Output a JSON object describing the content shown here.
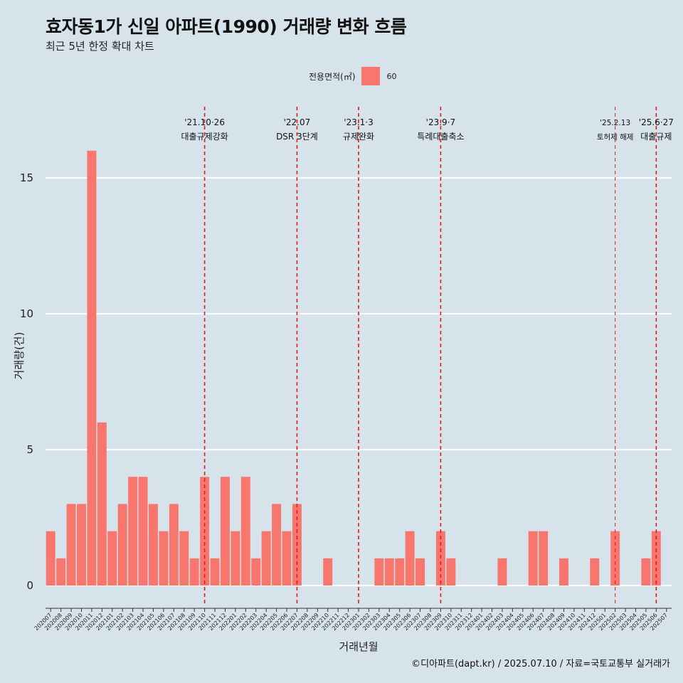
{
  "header": {
    "title": "효자동1가 신일 아파트(1990) 거래량 변화 흐름",
    "subtitle": "최근 5년 한정 확대 차트"
  },
  "legend": {
    "title": "전용면적(㎡)",
    "items": [
      {
        "label": "60",
        "color": "#f8766d"
      }
    ]
  },
  "caption": "©디아파트(dapt.kr) / 2025.07.10 / 자료=국토교통부 실거래가",
  "chart_data": {
    "type": "bar",
    "title": "효자동1가 신일 아파트(1990) 거래량 변화 흐름",
    "subtitle": "최근 5년 한정 확대 차트",
    "xlabel": "거래년월",
    "ylabel": "거래량(건)",
    "ylim": [
      0,
      17
    ],
    "yticks": [
      0,
      5,
      10,
      15
    ],
    "grid": "horizontal",
    "legend_position": "top",
    "bar_color": "#f8766d",
    "categories": [
      "202007",
      "202008",
      "202009",
      "202010",
      "202011",
      "202012",
      "202101",
      "202102",
      "202103",
      "202104",
      "202105",
      "202106",
      "202107",
      "202108",
      "202109",
      "202110",
      "202111",
      "202112",
      "202201",
      "202202",
      "202203",
      "202204",
      "202205",
      "202206",
      "202207",
      "202208",
      "202209",
      "202210",
      "202211",
      "202212",
      "202301",
      "202302",
      "202303",
      "202304",
      "202305",
      "202306",
      "202307",
      "202308",
      "202309",
      "202310",
      "202311",
      "202312",
      "202401",
      "202402",
      "202403",
      "202404",
      "202405",
      "202406",
      "202407",
      "202408",
      "202409",
      "202410",
      "202411",
      "202412",
      "202501",
      "202502",
      "202503",
      "202504",
      "202505",
      "202506",
      "202507"
    ],
    "series": [
      {
        "name": "60",
        "values": [
          2,
          1,
          3,
          3,
          16,
          6,
          2,
          3,
          4,
          4,
          3,
          2,
          3,
          2,
          1,
          4,
          1,
          4,
          2,
          4,
          1,
          2,
          3,
          2,
          3,
          0,
          0,
          1,
          0,
          0,
          0,
          0,
          1,
          1,
          1,
          2,
          1,
          0,
          2,
          1,
          0,
          0,
          0,
          0,
          1,
          0,
          0,
          2,
          2,
          0,
          1,
          0,
          0,
          1,
          0,
          2,
          0,
          0,
          1,
          2,
          0
        ]
      }
    ],
    "annotations": [
      {
        "category": "202110",
        "date": "'21.10·26",
        "label": "대출규제강화",
        "small": false
      },
      {
        "category": "202207",
        "date": "'22.07",
        "label": "DSR 3단계",
        "small": false
      },
      {
        "category": "202301",
        "date": "'23.1·3",
        "label": "규제완화",
        "small": false
      },
      {
        "category": "202309",
        "date": "'23.9·7",
        "label": "특례대출축소",
        "small": false
      },
      {
        "category": "202502",
        "date": "'25.2.13",
        "label": "토허제 해제",
        "small": true
      },
      {
        "category": "202506",
        "date": "'25.6·27",
        "label": "대출규제",
        "small": false
      }
    ]
  }
}
